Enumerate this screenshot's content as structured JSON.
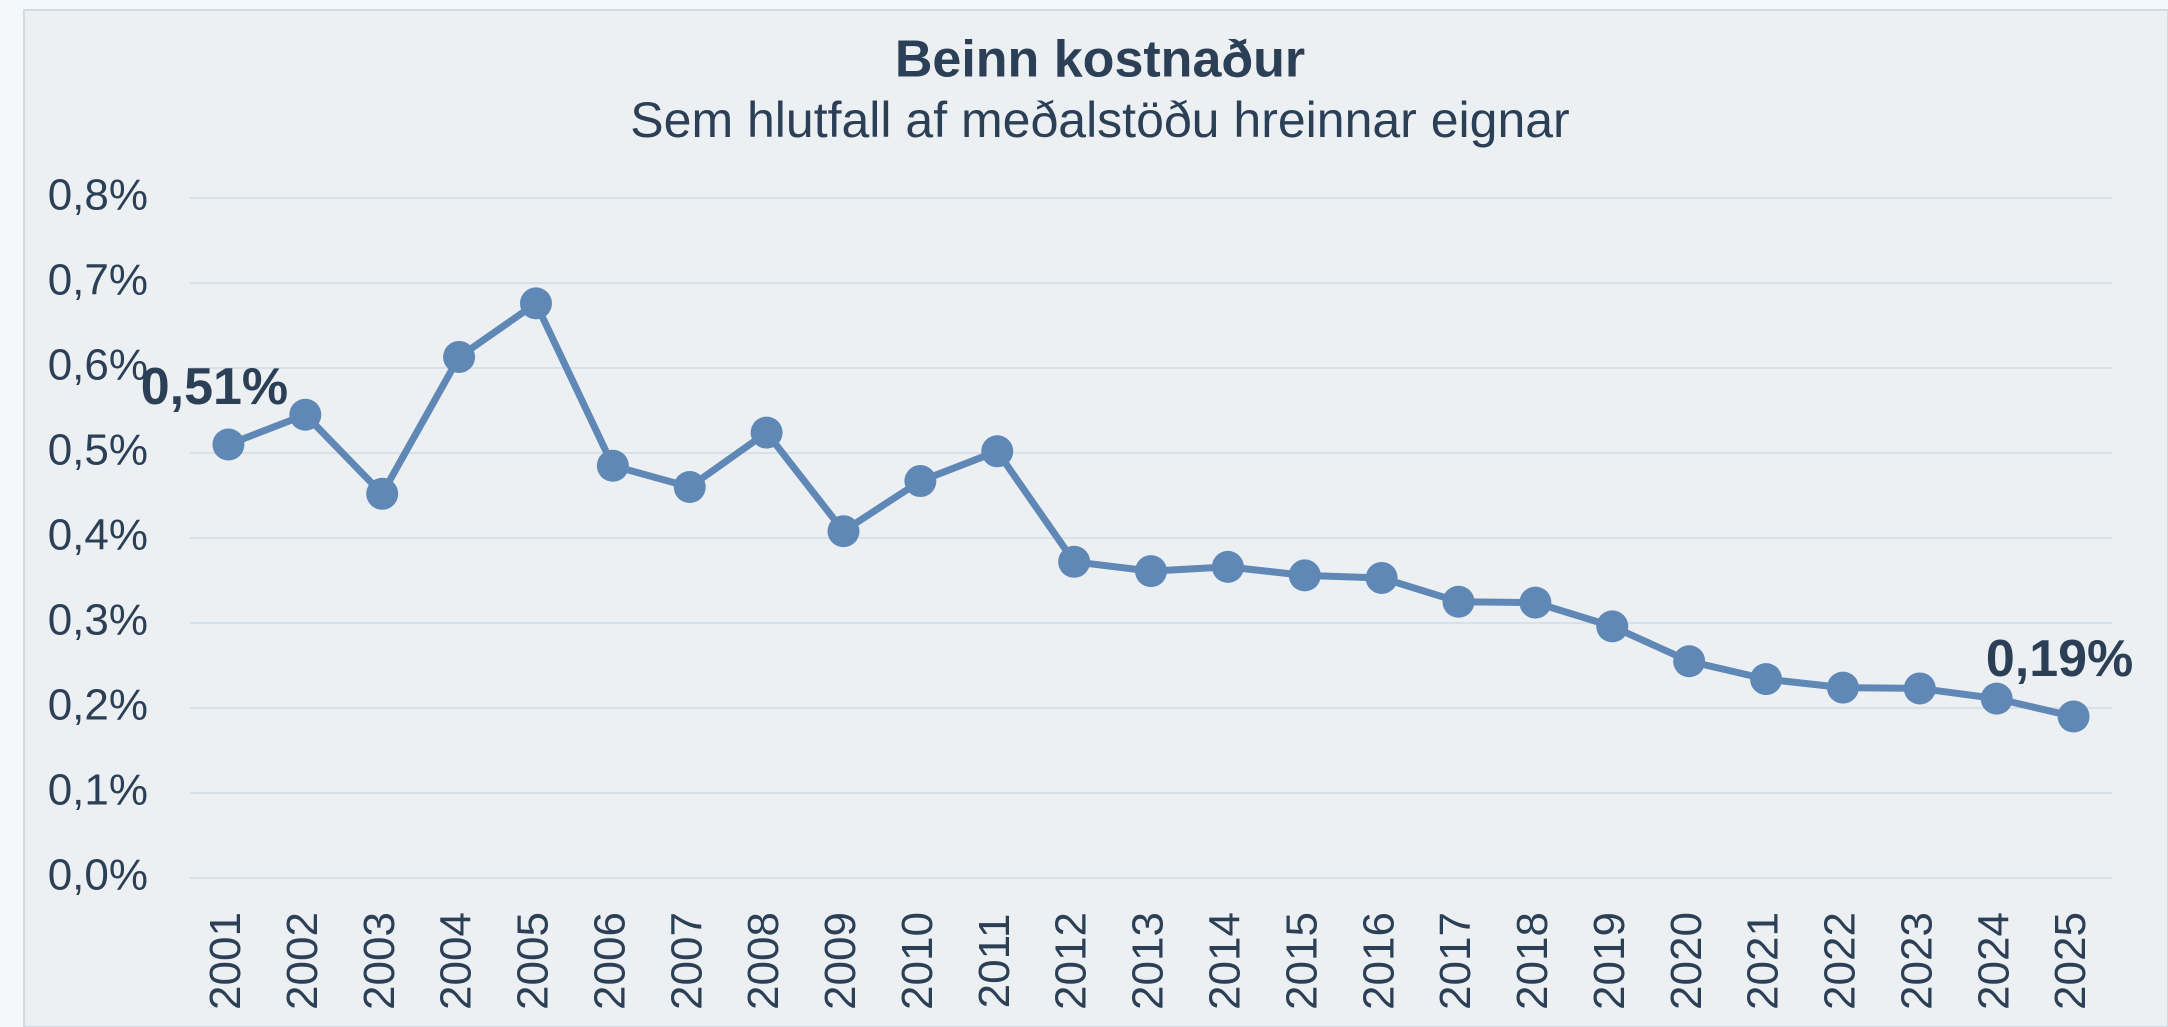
{
  "chart_data": {
    "type": "line",
    "title": "Beinn kostnaður",
    "subtitle": "Sem hlutfall af meðalstöðu hreinnar eignar",
    "categories": [
      "2001",
      "2002",
      "2003",
      "2004",
      "2005",
      "2006",
      "2007",
      "2008",
      "2009",
      "2010",
      "2011",
      "2012",
      "2013",
      "2014",
      "2015",
      "2016",
      "2017",
      "2018",
      "2019",
      "2020",
      "2021",
      "2022",
      "2023",
      "2024",
      "2025"
    ],
    "series": [
      {
        "name": "Beinn kostnaður",
        "color": "#5f88b6",
        "values": [
          0.51,
          0.545,
          0.452,
          0.613,
          0.676,
          0.485,
          0.46,
          0.524,
          0.408,
          0.467,
          0.502,
          0.372,
          0.361,
          0.366,
          0.356,
          0.353,
          0.325,
          0.324,
          0.296,
          0.255,
          0.234,
          0.224,
          0.223,
          0.211,
          0.19
        ],
        "value_labels": [
          "0,51%",
          null,
          null,
          null,
          null,
          null,
          null,
          null,
          null,
          null,
          null,
          null,
          null,
          null,
          null,
          null,
          null,
          null,
          null,
          null,
          null,
          null,
          null,
          null,
          "0,19%"
        ]
      }
    ],
    "ylim": [
      0,
      0.8
    ],
    "yticks": [
      {
        "value": 0,
        "label": "0,0%"
      },
      {
        "value": 0.1,
        "label": "0,1%"
      },
      {
        "value": 0.2,
        "label": "0,2%"
      },
      {
        "value": 0.3,
        "label": "0,3%"
      },
      {
        "value": 0.4,
        "label": "0,4%"
      },
      {
        "value": 0.5,
        "label": "0,5%"
      },
      {
        "value": 0.6,
        "label": "0,6%"
      },
      {
        "value": 0.7,
        "label": "0,7%"
      },
      {
        "value": 0.8,
        "label": "0,8%"
      }
    ],
    "grid": true
  }
}
